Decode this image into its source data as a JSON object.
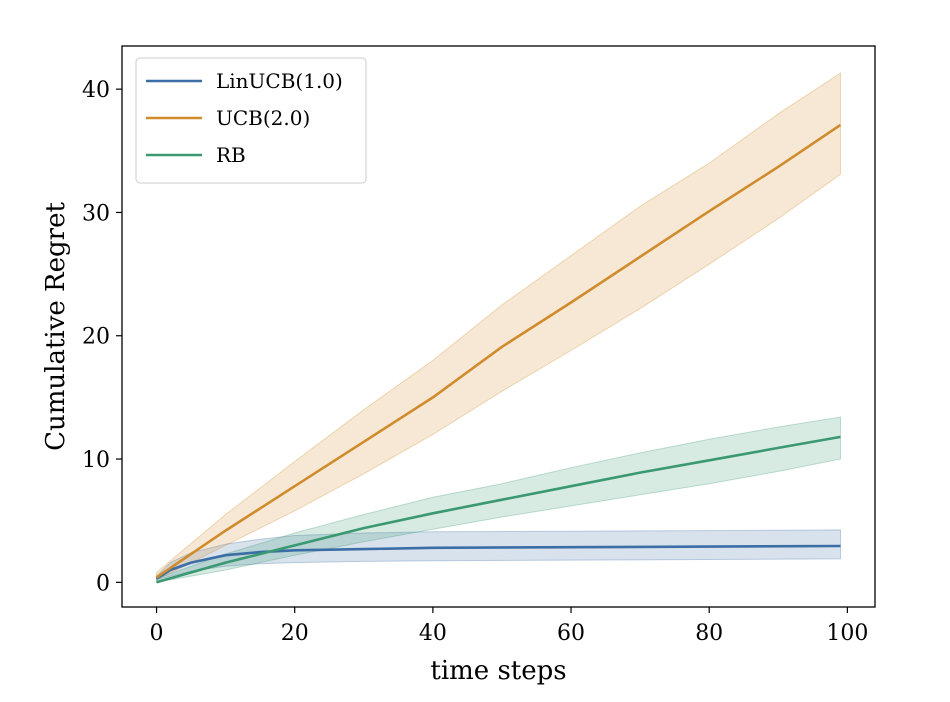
{
  "chart_data": {
    "type": "line",
    "xlabel": "time steps",
    "ylabel": "Cumulative Regret",
    "xlim": [
      -5,
      104
    ],
    "ylim": [
      -2,
      43.5
    ],
    "xticks": [
      0,
      20,
      40,
      60,
      80,
      100
    ],
    "yticks": [
      0,
      10,
      20,
      30,
      40
    ],
    "grid": false,
    "legend_position": "top-left",
    "series": [
      {
        "name": "LinUCB(1.0)",
        "color": "#3a6ea5",
        "x": [
          0,
          2,
          5,
          10,
          15,
          20,
          30,
          40,
          60,
          80,
          99
        ],
        "mean": [
          0.3,
          1.0,
          1.6,
          2.2,
          2.45,
          2.6,
          2.7,
          2.8,
          2.85,
          2.9,
          2.95
        ],
        "lower": [
          0.2,
          0.5,
          0.9,
          1.3,
          1.5,
          1.6,
          1.7,
          1.75,
          1.8,
          1.85,
          1.9
        ],
        "upper": [
          0.5,
          1.6,
          2.4,
          3.1,
          3.5,
          3.8,
          4.0,
          4.1,
          4.15,
          4.2,
          4.25
        ]
      },
      {
        "name": "UCB(2.0)",
        "color": "#d08c2c",
        "x": [
          0,
          10,
          20,
          30,
          40,
          50,
          60,
          70,
          80,
          90,
          99
        ],
        "mean": [
          0.4,
          4.2,
          7.8,
          11.4,
          15.0,
          19.1,
          22.7,
          26.4,
          30.1,
          33.7,
          37.1
        ],
        "lower": [
          0.2,
          3.0,
          5.8,
          8.8,
          12.0,
          15.5,
          18.8,
          22.2,
          25.8,
          29.5,
          33.1
        ],
        "upper": [
          0.8,
          5.5,
          9.8,
          14.0,
          18.0,
          22.5,
          26.5,
          30.5,
          34.0,
          38.0,
          41.3
        ]
      },
      {
        "name": "RB",
        "color": "#3b9971",
        "x": [
          0,
          10,
          20,
          30,
          40,
          50,
          60,
          70,
          80,
          90,
          99
        ],
        "mean": [
          0.0,
          1.6,
          3.0,
          4.4,
          5.6,
          6.7,
          7.8,
          8.9,
          9.9,
          10.9,
          11.8
        ],
        "lower": [
          0.0,
          1.0,
          2.2,
          3.3,
          4.3,
          5.3,
          6.2,
          7.1,
          8.0,
          9.0,
          10.0
        ],
        "upper": [
          0.3,
          2.3,
          4.0,
          5.5,
          6.9,
          8.0,
          9.3,
          10.5,
          11.6,
          12.6,
          13.4
        ]
      }
    ]
  }
}
